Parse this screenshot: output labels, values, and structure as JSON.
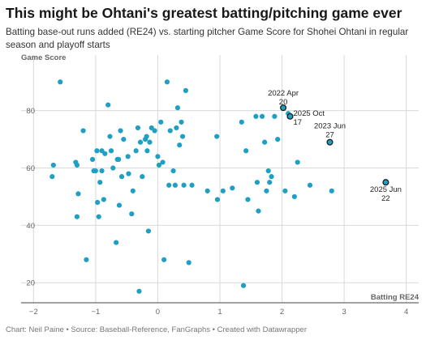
{
  "header": {
    "title": "This might be Ohtani's greatest batting/pitching game ever",
    "subtitle": "Batting base-out runs added (RE24) vs. starting pitcher Game Score for Shohei Ohtani in regular season and playoff starts"
  },
  "footer": {
    "caption": "Chart: Neil Paine • Source: Baseball-Reference, FanGraphs • Created with Datawrapper"
  },
  "colors": {
    "point": "#1f9fc4",
    "highlight_stroke": "#1a1a1a",
    "grid": "#d9d9d9"
  },
  "chart_data": {
    "type": "scatter",
    "xlabel": "Batting RE24",
    "ylabel": "Game Score",
    "xlim": [
      -2.2,
      4.2
    ],
    "ylim": [
      13,
      96
    ],
    "x_ticks": [
      -2,
      -1,
      0,
      1,
      2,
      3,
      4
    ],
    "y_ticks": [
      20,
      40,
      60,
      80
    ],
    "x_tick_labels": [
      "−2",
      "−1",
      "0",
      "1",
      "2",
      "3",
      "4"
    ],
    "y_tick_labels": [
      "20",
      "40",
      "60",
      "80"
    ],
    "grid": true,
    "points": [
      [
        -1.7,
        57
      ],
      [
        -1.68,
        61
      ],
      [
        -1.57,
        90
      ],
      [
        -1.32,
        62
      ],
      [
        -1.3,
        61
      ],
      [
        -1.3,
        43
      ],
      [
        -1.28,
        51
      ],
      [
        -1.2,
        73
      ],
      [
        -1.15,
        28
      ],
      [
        -1.05,
        63
      ],
      [
        -1.03,
        59
      ],
      [
        -1.0,
        59
      ],
      [
        -0.98,
        66
      ],
      [
        -0.97,
        48
      ],
      [
        -0.95,
        43
      ],
      [
        -0.93,
        55
      ],
      [
        -0.9,
        59
      ],
      [
        -0.9,
        66
      ],
      [
        -0.87,
        49
      ],
      [
        -0.85,
        65
      ],
      [
        -0.8,
        82
      ],
      [
        -0.77,
        71
      ],
      [
        -0.75,
        66
      ],
      [
        -0.72,
        60
      ],
      [
        -0.67,
        34
      ],
      [
        -0.65,
        63
      ],
      [
        -0.63,
        63
      ],
      [
        -0.62,
        47
      ],
      [
        -0.6,
        73
      ],
      [
        -0.58,
        57
      ],
      [
        -0.55,
        70
      ],
      [
        -0.48,
        64
      ],
      [
        -0.47,
        58
      ],
      [
        -0.42,
        44
      ],
      [
        -0.4,
        52
      ],
      [
        -0.35,
        66
      ],
      [
        -0.32,
        74
      ],
      [
        -0.3,
        17
      ],
      [
        -0.28,
        69
      ],
      [
        -0.25,
        57
      ],
      [
        -0.2,
        70
      ],
      [
        -0.18,
        71
      ],
      [
        -0.17,
        66
      ],
      [
        -0.15,
        38
      ],
      [
        -0.13,
        69
      ],
      [
        -0.1,
        74
      ],
      [
        -0.05,
        73
      ],
      [
        0.0,
        64
      ],
      [
        0.02,
        61
      ],
      [
        0.05,
        76
      ],
      [
        0.08,
        62
      ],
      [
        0.1,
        28
      ],
      [
        0.15,
        90
      ],
      [
        0.18,
        54
      ],
      [
        0.2,
        73
      ],
      [
        0.25,
        59
      ],
      [
        0.28,
        54
      ],
      [
        0.3,
        74
      ],
      [
        0.32,
        81
      ],
      [
        0.35,
        68
      ],
      [
        0.38,
        76
      ],
      [
        0.4,
        71
      ],
      [
        0.42,
        54
      ],
      [
        0.45,
        87
      ],
      [
        0.5,
        27
      ],
      [
        0.55,
        54
      ],
      [
        0.8,
        52
      ],
      [
        0.95,
        71
      ],
      [
        0.96,
        49
      ],
      [
        1.05,
        52
      ],
      [
        1.2,
        53
      ],
      [
        1.35,
        76
      ],
      [
        1.38,
        19
      ],
      [
        1.42,
        66
      ],
      [
        1.45,
        49
      ],
      [
        1.58,
        78
      ],
      [
        1.6,
        55
      ],
      [
        1.62,
        45
      ],
      [
        1.68,
        78
      ],
      [
        1.72,
        69
      ],
      [
        1.75,
        52
      ],
      [
        1.78,
        59
      ],
      [
        1.8,
        55
      ],
      [
        1.83,
        57
      ],
      [
        1.88,
        78
      ],
      [
        1.93,
        70
      ],
      [
        2.05,
        52
      ],
      [
        2.1,
        79
      ],
      [
        2.2,
        50
      ],
      [
        2.25,
        62
      ],
      [
        2.45,
        54
      ],
      [
        2.8,
        52
      ]
    ],
    "highlights": [
      {
        "x": 2.02,
        "y": 81,
        "label_lines": [
          "2022 Apr",
          "20"
        ]
      },
      {
        "x": 2.13,
        "y": 78,
        "label_lines": [
          "2025 Oct",
          "17"
        ]
      },
      {
        "x": 2.77,
        "y": 69,
        "label_lines": [
          "2023 Jun",
          "27"
        ]
      },
      {
        "x": 3.67,
        "y": 55,
        "label_lines": [
          "2025 Jun",
          "22"
        ]
      }
    ]
  }
}
